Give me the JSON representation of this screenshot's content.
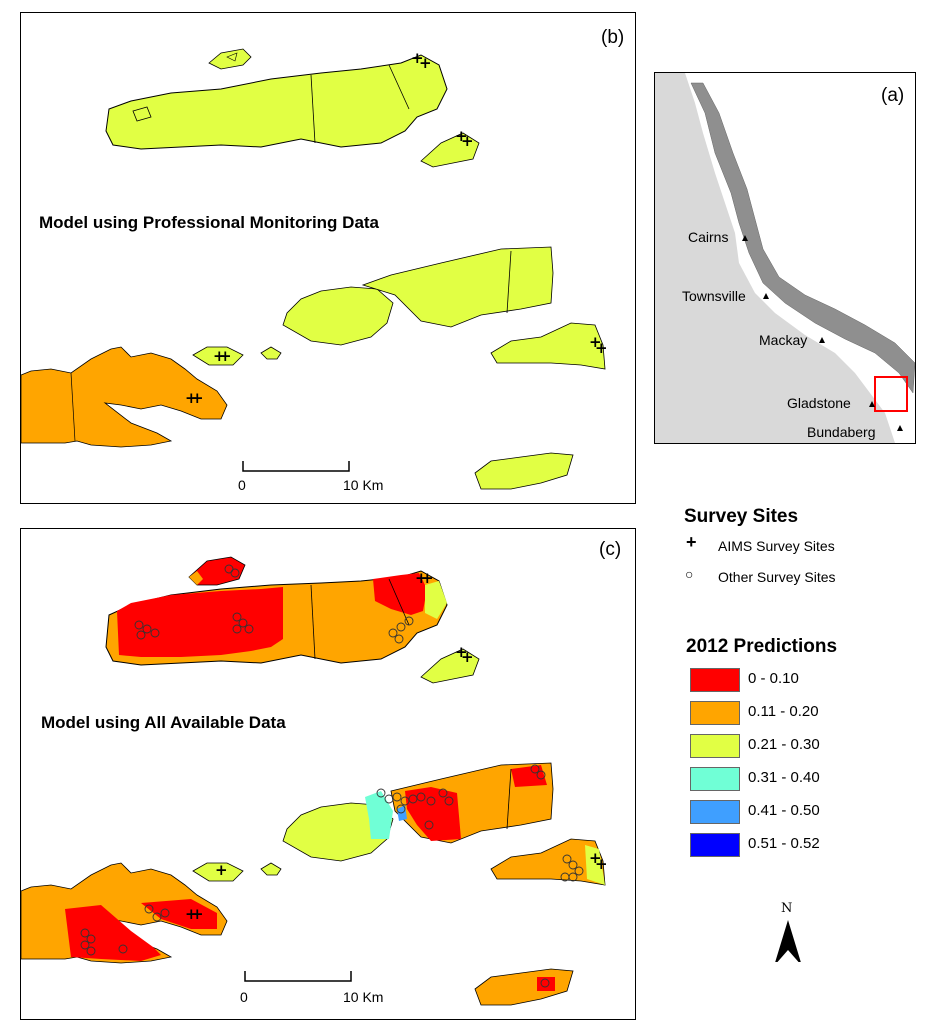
{
  "panels": {
    "b": {
      "label": "(b)",
      "title": "Model using Professional Monitoring Data",
      "scale": {
        "zero": "0",
        "end": "10 Km"
      }
    },
    "c": {
      "label": "(c)",
      "title": "Model using All Available Data",
      "scale": {
        "zero": "0",
        "end": "10 Km"
      }
    },
    "a": {
      "label": "(a)",
      "cities": [
        "Cairns",
        "Townsville",
        "Mackay",
        "Gladstone",
        "Bundaberg"
      ]
    }
  },
  "legend": {
    "survey_title": "Survey Sites",
    "aims_symbol": "+",
    "aims_label": "AIMS Survey Sites",
    "other_symbol": "○",
    "other_label": "Other Survey Sites",
    "pred_title": "2012 Predictions",
    "classes": [
      {
        "label": "0 - 0.10",
        "color": "#ff0000"
      },
      {
        "label": "0.11 - 0.20",
        "color": "#ffa500"
      },
      {
        "label": "0.21 - 0.30",
        "color": "#e1ff44"
      },
      {
        "label": "0.31 - 0.40",
        "color": "#70ffd6"
      },
      {
        "label": "0.41 - 0.50",
        "color": "#3f9fff"
      },
      {
        "label": "0.51 - 0.52",
        "color": "#0000ff"
      }
    ],
    "north_label": "N"
  }
}
